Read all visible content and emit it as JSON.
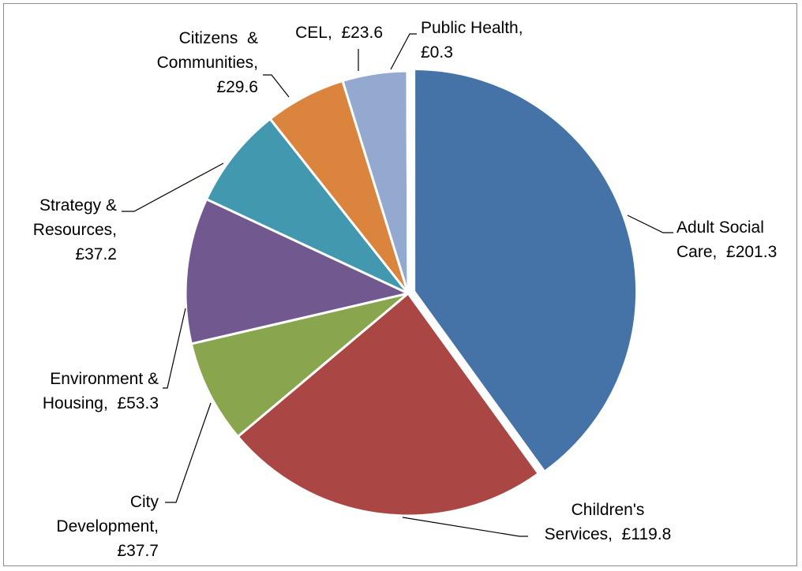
{
  "chart_data": {
    "type": "pie",
    "title": "",
    "legend": "none",
    "currency": "£",
    "slices": [
      {
        "category": "Adult Social Care",
        "value": 201.3,
        "color": "#4572A7",
        "label_lines": [
          "Adult Social",
          "Care,  £201.3"
        ]
      },
      {
        "category": "Children's Services",
        "value": 119.8,
        "color": "#AA4643",
        "label_lines": [
          "Children's",
          "Services,  £119.8"
        ]
      },
      {
        "category": "City Development",
        "value": 37.7,
        "color": "#89A54E",
        "label_lines": [
          "City",
          "Development,",
          "£37.7"
        ]
      },
      {
        "category": "Environment & Housing",
        "value": 53.3,
        "color": "#71588F",
        "label_lines": [
          "Environment &",
          "Housing,  £53.3"
        ]
      },
      {
        "category": "Strategy & Resources",
        "value": 37.2,
        "color": "#4198AF",
        "label_lines": [
          "Strategy &",
          "Resources,",
          "£37.2"
        ]
      },
      {
        "category": "Citizens & Communities",
        "value": 29.6,
        "color": "#DB843D",
        "label_lines": [
          "Citizens  &",
          "Communities,",
          "£29.6"
        ]
      },
      {
        "category": "CEL",
        "value": 23.6,
        "color": "#93A9CF",
        "label_lines": [
          "CEL,  £23.6"
        ]
      },
      {
        "category": "Public Health",
        "value": 0.3,
        "color": "#B9CD96",
        "label_lines": [
          "Public Health,",
          "£0.3"
        ]
      }
    ]
  }
}
